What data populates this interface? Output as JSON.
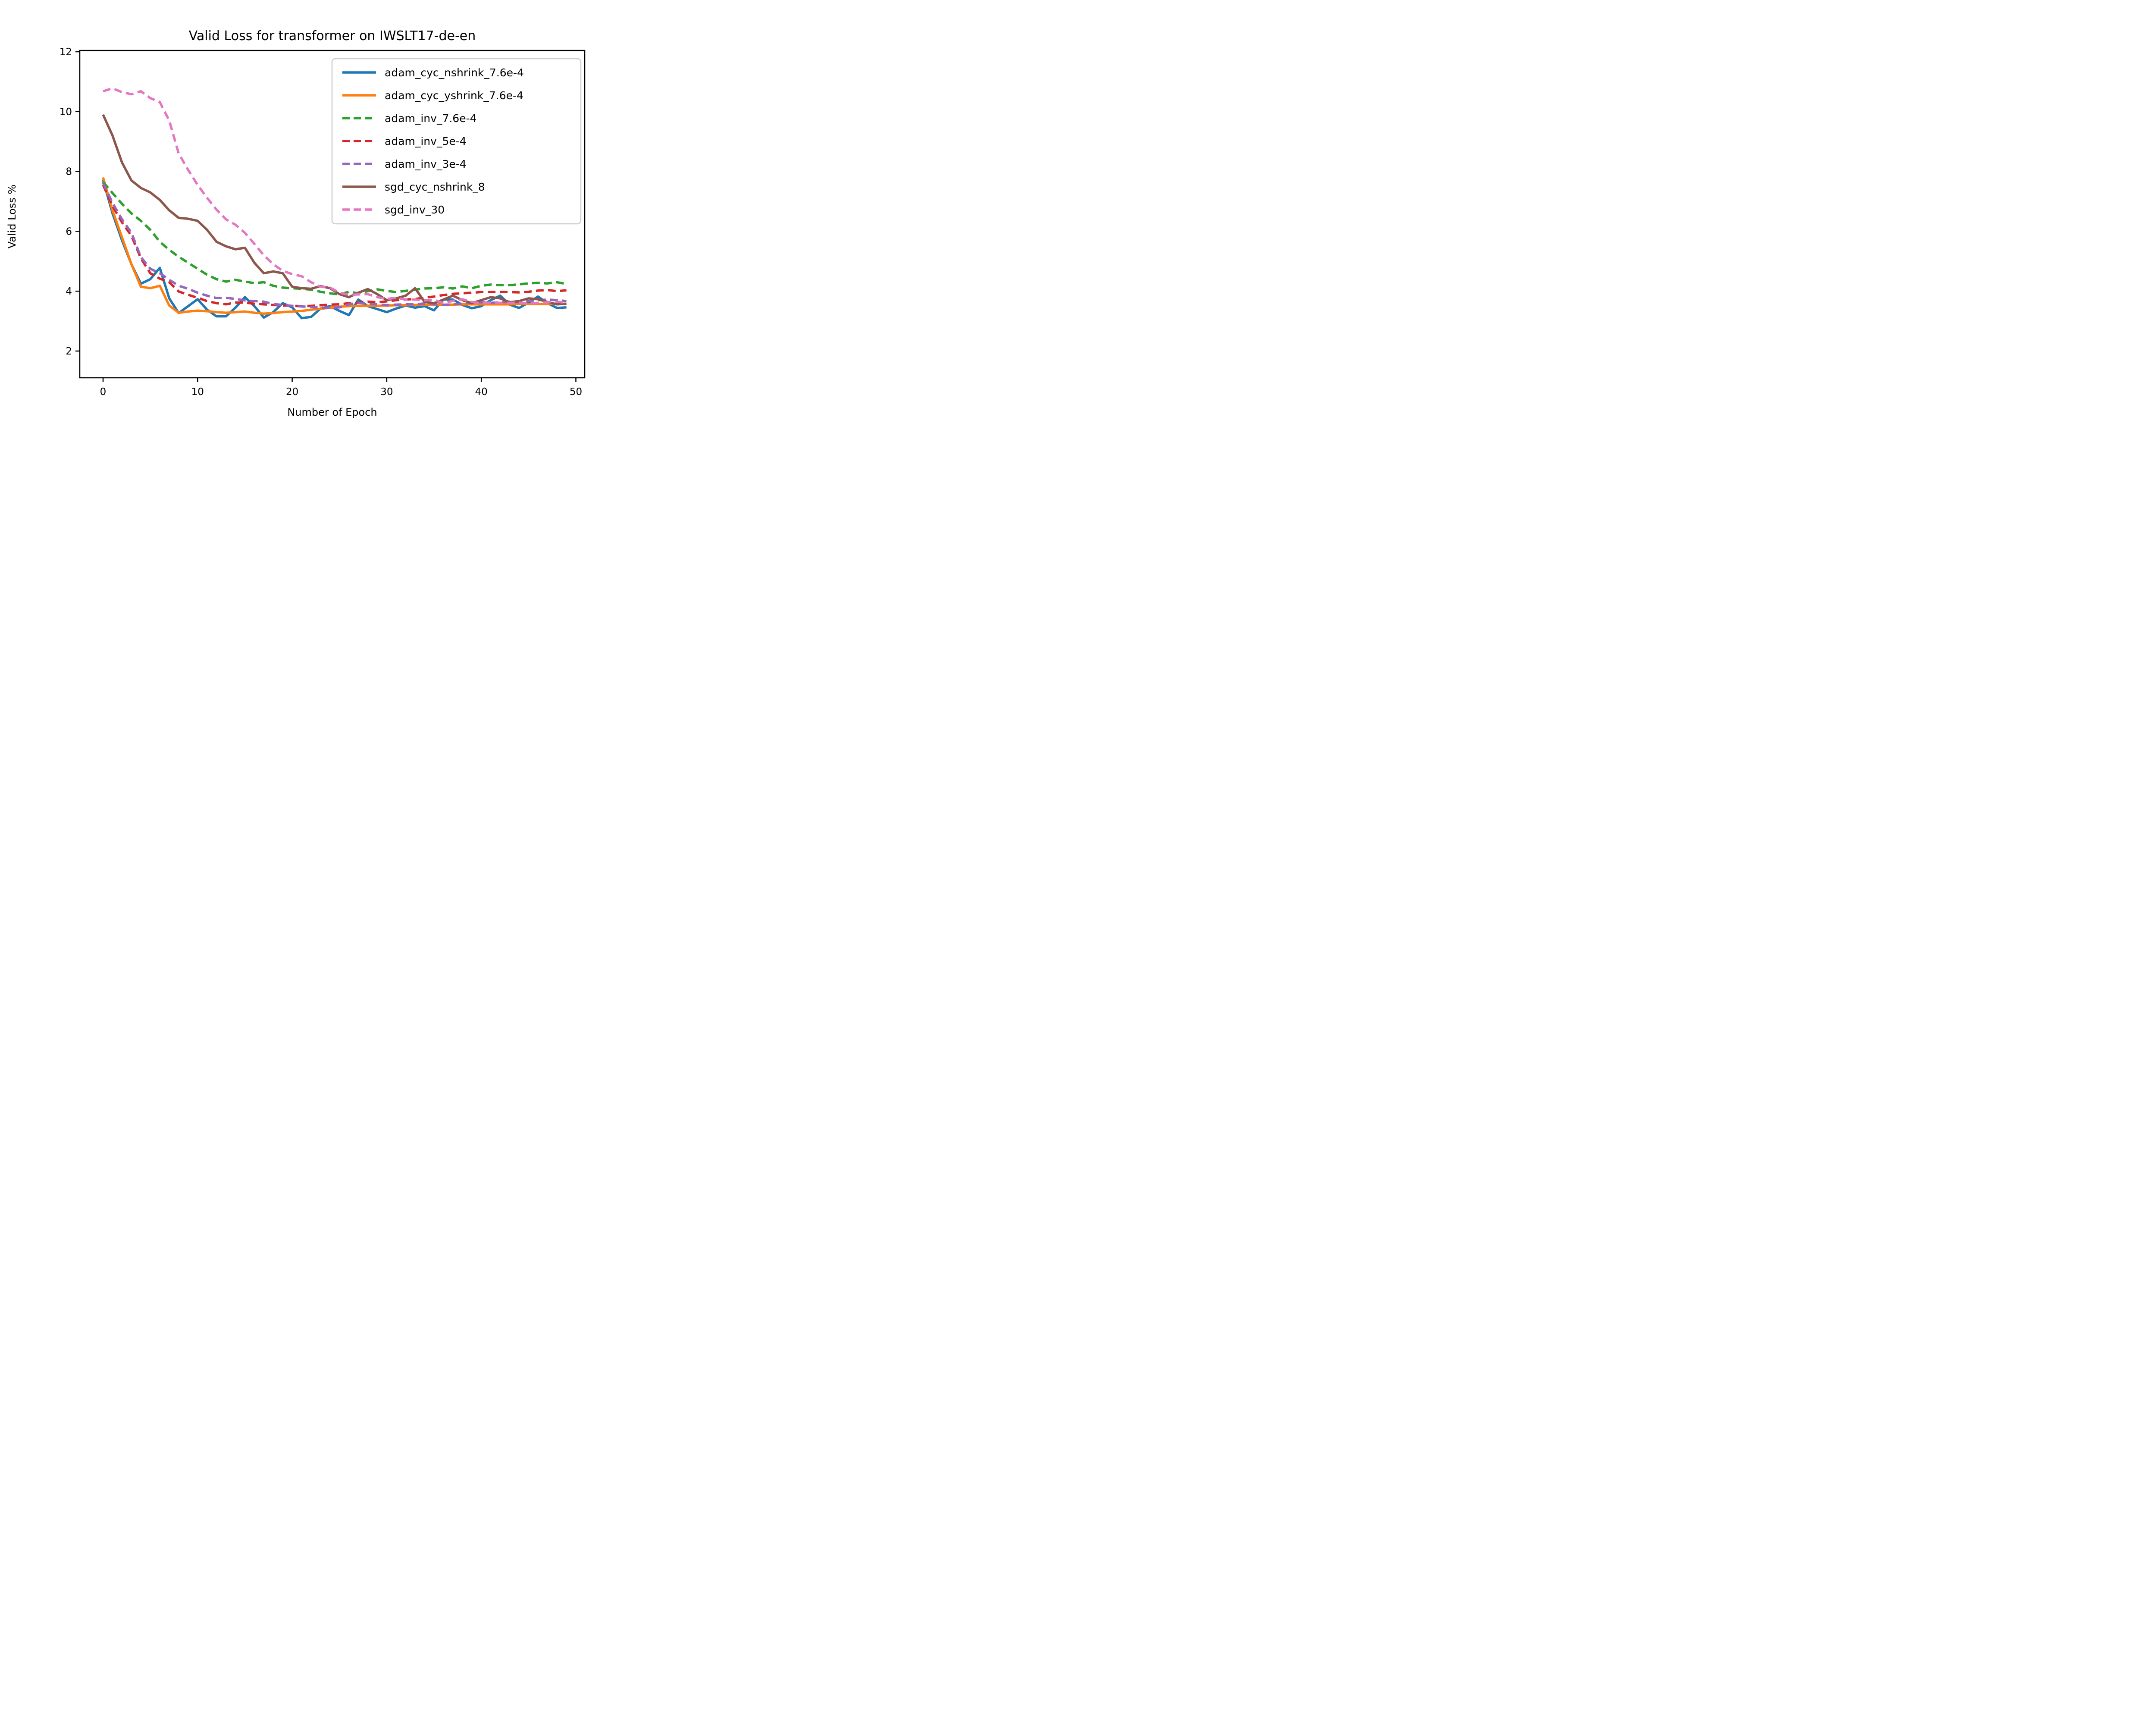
{
  "figure": {
    "title": "Valid Loss for transformer on IWSLT17-de-en"
  },
  "chart_data": {
    "type": "line",
    "title": "Valid Loss for transformer on IWSLT17-de-en",
    "xlabel": "Number of Epoch",
    "ylabel": "Valid Loss %",
    "x_ticks": [
      0,
      10,
      20,
      30,
      40,
      50
    ],
    "y_ticks": [
      2,
      4,
      6,
      8,
      10,
      12
    ],
    "xlim": [
      -2.45,
      51.45
    ],
    "ylim": [
      1.1,
      12.05
    ],
    "grid": false,
    "legend_position": "upper right",
    "x": [
      0,
      1,
      2,
      3,
      4,
      5,
      6,
      7,
      8,
      9,
      10,
      11,
      12,
      13,
      14,
      15,
      16,
      17,
      18,
      19,
      20,
      21,
      22,
      23,
      24,
      25,
      26,
      27,
      28,
      29,
      30,
      31,
      32,
      33,
      34,
      35,
      36,
      37,
      38,
      39,
      40,
      41,
      42,
      43,
      44,
      45,
      46,
      47,
      48,
      49
    ],
    "series": [
      {
        "name": "adam_cyc_nshrink_7.6e-4",
        "color": "#1f77b4",
        "dashed": false,
        "values": [
          7.72,
          6.6,
          5.7,
          4.9,
          4.25,
          4.4,
          4.78,
          3.76,
          3.27,
          3.5,
          3.73,
          3.38,
          3.16,
          3.16,
          3.45,
          3.8,
          3.5,
          3.12,
          3.3,
          3.6,
          3.46,
          3.1,
          3.14,
          3.42,
          3.5,
          3.34,
          3.2,
          3.72,
          3.5,
          3.4,
          3.3,
          3.42,
          3.52,
          3.45,
          3.5,
          3.36,
          3.72,
          3.72,
          3.54,
          3.43,
          3.5,
          3.7,
          3.85,
          3.55,
          3.44,
          3.62,
          3.82,
          3.6,
          3.44,
          3.46
        ]
      },
      {
        "name": "adam_cyc_yshrink_7.6e-4",
        "color": "#ff7f0e",
        "dashed": false,
        "values": [
          7.8,
          6.7,
          5.8,
          4.9,
          4.15,
          4.1,
          4.18,
          3.52,
          3.28,
          3.32,
          3.35,
          3.33,
          3.3,
          3.28,
          3.3,
          3.32,
          3.28,
          3.25,
          3.27,
          3.3,
          3.32,
          3.34,
          3.38,
          3.41,
          3.45,
          3.48,
          3.5,
          3.51,
          3.51,
          3.51,
          3.52,
          3.53,
          3.53,
          3.54,
          3.54,
          3.55,
          3.55,
          3.55,
          3.56,
          3.56,
          3.56,
          3.56,
          3.56,
          3.56,
          3.57,
          3.57,
          3.57,
          3.57,
          3.57,
          3.58
        ]
      },
      {
        "name": "adam_inv_7.6e-4",
        "color": "#2ca02c",
        "dashed": true,
        "values": [
          7.65,
          7.28,
          6.92,
          6.6,
          6.35,
          6.05,
          5.65,
          5.38,
          5.15,
          4.95,
          4.75,
          4.55,
          4.4,
          4.32,
          4.38,
          4.32,
          4.27,
          4.3,
          4.18,
          4.12,
          4.1,
          4.08,
          4.05,
          3.98,
          3.93,
          3.89,
          3.98,
          3.93,
          4.0,
          4.06,
          4.01,
          3.97,
          4.01,
          4.05,
          4.09,
          4.1,
          4.13,
          4.09,
          4.16,
          4.1,
          4.18,
          4.22,
          4.2,
          4.2,
          4.23,
          4.26,
          4.28,
          4.26,
          4.3,
          4.24
        ]
      },
      {
        "name": "adam_inv_5e-4",
        "color": "#d62728",
        "dashed": true,
        "values": [
          7.55,
          6.85,
          6.3,
          5.85,
          5.1,
          4.6,
          4.42,
          4.3,
          3.99,
          3.88,
          3.78,
          3.67,
          3.6,
          3.56,
          3.62,
          3.62,
          3.58,
          3.56,
          3.54,
          3.52,
          3.51,
          3.5,
          3.51,
          3.53,
          3.55,
          3.56,
          3.6,
          3.62,
          3.65,
          3.63,
          3.66,
          3.7,
          3.72,
          3.74,
          3.78,
          3.82,
          3.87,
          3.91,
          3.93,
          3.95,
          3.97,
          3.97,
          3.98,
          3.97,
          3.96,
          3.98,
          4.02,
          4.04,
          4.0,
          4.03
        ]
      },
      {
        "name": "adam_inv_3e-4",
        "color": "#9467bd",
        "dashed": true,
        "values": [
          7.62,
          6.95,
          6.4,
          5.95,
          5.14,
          4.75,
          4.6,
          4.38,
          4.18,
          4.08,
          3.95,
          3.85,
          3.77,
          3.78,
          3.74,
          3.69,
          3.67,
          3.65,
          3.57,
          3.54,
          3.51,
          3.49,
          3.47,
          3.45,
          3.45,
          3.46,
          3.56,
          3.61,
          3.57,
          3.56,
          3.53,
          3.55,
          3.56,
          3.56,
          3.59,
          3.56,
          3.54,
          3.56,
          3.58,
          3.62,
          3.63,
          3.61,
          3.63,
          3.65,
          3.63,
          3.67,
          3.7,
          3.72,
          3.7,
          3.67
        ]
      },
      {
        "name": "sgd_cyc_nshrink_8",
        "color": "#8c564b",
        "dashed": false,
        "values": [
          9.9,
          9.2,
          8.3,
          7.7,
          7.45,
          7.3,
          7.05,
          6.7,
          6.45,
          6.42,
          6.35,
          6.05,
          5.65,
          5.5,
          5.4,
          5.45,
          4.95,
          4.6,
          4.66,
          4.6,
          4.15,
          4.1,
          4.08,
          4.17,
          4.1,
          3.9,
          3.8,
          3.95,
          4.07,
          3.9,
          3.7,
          3.76,
          3.85,
          4.1,
          3.64,
          3.6,
          3.72,
          3.85,
          3.7,
          3.6,
          3.7,
          3.8,
          3.76,
          3.63,
          3.67,
          3.76,
          3.73,
          3.64,
          3.56,
          3.58
        ]
      },
      {
        "name": "sgd_inv_30",
        "color": "#e377c2",
        "dashed": true,
        "values": [
          10.68,
          10.78,
          10.65,
          10.58,
          10.68,
          10.45,
          10.32,
          9.7,
          8.6,
          8.05,
          7.55,
          7.12,
          6.72,
          6.4,
          6.22,
          5.95,
          5.58,
          5.2,
          4.9,
          4.68,
          4.57,
          4.5,
          4.3,
          4.15,
          4.12,
          3.95,
          3.88,
          3.89,
          3.9,
          3.8,
          3.74,
          3.78,
          3.72,
          3.72,
          3.69,
          3.71,
          3.6,
          3.68,
          3.73,
          3.64,
          3.6,
          3.62,
          3.61,
          3.61,
          3.62,
          3.59,
          3.61,
          3.63,
          3.65,
          3.61
        ]
      }
    ]
  }
}
